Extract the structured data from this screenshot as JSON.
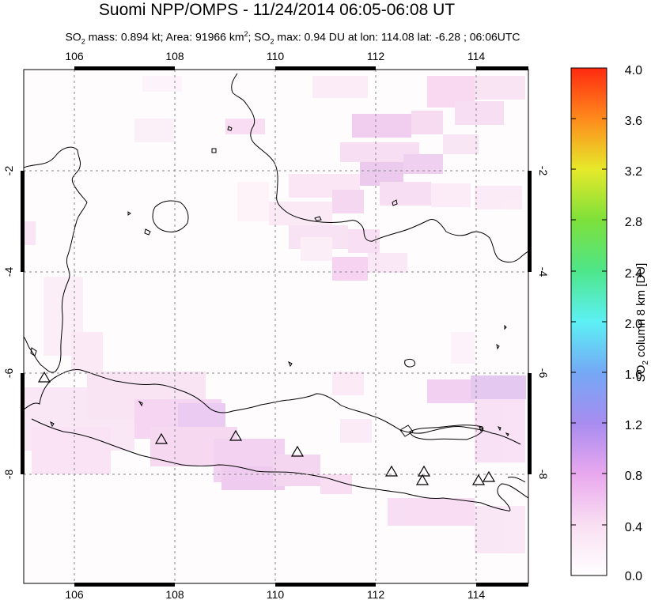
{
  "title": "Suomi NPP/OMPS - 11/24/2014 06:05-06:08 UT",
  "subtitle": {
    "so2_mass_prefix": "SO",
    "so2_mass_text": " mass: 0.894 kt; Area: 91966 km",
    "area_suffix": "; SO",
    "max_text": " max: 0.94 DU at lon: 114.08 lat: -6.28 ; 06:06UTC"
  },
  "map": {
    "lon_ticks": [
      "106",
      "108",
      "110",
      "112",
      "114"
    ],
    "lat_ticks": [
      "-2",
      "-4",
      "-6",
      "-8"
    ],
    "lon_range": [
      105,
      115
    ],
    "lat_range": [
      -10.2,
      -0.1
    ],
    "volcanoes": [
      {
        "lon": 105.42,
        "lat": -6.1
      },
      {
        "lon": 107.73,
        "lat": -7.28
      },
      {
        "lon": 109.21,
        "lat": -7.24
      },
      {
        "lon": 110.44,
        "lat": -7.54
      },
      {
        "lon": 112.31,
        "lat": -7.93
      },
      {
        "lon": 112.92,
        "lat": -7.94
      },
      {
        "lon": 112.91,
        "lat": -8.11
      },
      {
        "lon": 114.04,
        "lat": -8.13
      },
      {
        "lon": 114.24,
        "lat": -8.06
      }
    ]
  },
  "colorbar": {
    "labels": [
      "4.0",
      "3.6",
      "3.2",
      "2.8",
      "2.4",
      "2.0",
      "1.6",
      "1.2",
      "0.8",
      "0.4",
      "0.0"
    ],
    "title_prefix": "SO",
    "title_suffix": " column 8 km [DU]",
    "range": [
      0,
      4
    ]
  }
}
